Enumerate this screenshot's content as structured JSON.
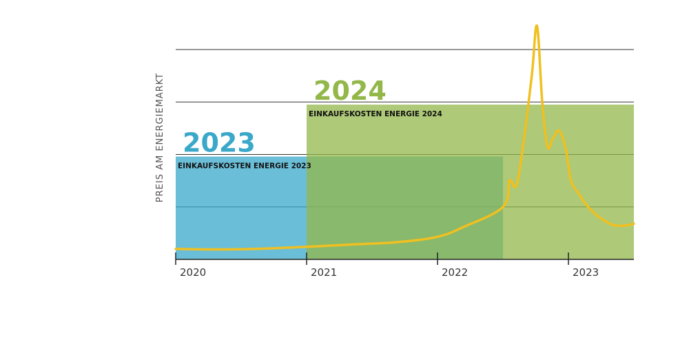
{
  "chart_data": {
    "type": "line",
    "title": "",
    "ylabel": "PREIS AM ENERGIEMARKT",
    "xlabel": "",
    "x_ticks": [
      "2020",
      "2021",
      "2022",
      "2023"
    ],
    "xlim": [
      2020,
      2023.5
    ],
    "ylim": [
      0,
      4.0
    ],
    "grid": "horizontal",
    "gridlines": [
      1,
      2,
      3,
      4
    ],
    "series": [
      {
        "color": "#f0c020",
        "points": [
          [
            2020.0,
            0.2
          ],
          [
            2020.3,
            0.19
          ],
          [
            2020.6,
            0.2
          ],
          [
            2021.0,
            0.24
          ],
          [
            2021.4,
            0.29
          ],
          [
            2021.7,
            0.33
          ],
          [
            2022.0,
            0.43
          ],
          [
            2022.2,
            0.62
          ],
          [
            2022.5,
            1.0
          ],
          [
            2022.55,
            1.5
          ],
          [
            2022.6,
            1.4
          ],
          [
            2022.65,
            2.1
          ],
          [
            2022.72,
            3.5
          ],
          [
            2022.76,
            4.45
          ],
          [
            2022.8,
            3.0
          ],
          [
            2022.84,
            2.15
          ],
          [
            2022.88,
            2.3
          ],
          [
            2022.93,
            2.45
          ],
          [
            2022.98,
            2.1
          ],
          [
            2023.02,
            1.5
          ],
          [
            2023.08,
            1.25
          ],
          [
            2023.15,
            1.0
          ],
          [
            2023.25,
            0.78
          ],
          [
            2023.35,
            0.65
          ],
          [
            2023.45,
            0.65
          ],
          [
            2023.5,
            0.68
          ]
        ]
      }
    ],
    "bands": [
      {
        "name": "2023",
        "label": "EINKAUFSKOSTEN ENERGIE 2023",
        "x_range": [
          2020,
          2022.5
        ],
        "level": 1.96,
        "color": "#3aa8c9",
        "opacity": 0.75
      },
      {
        "name": "2024",
        "label": "EINKAUFSKOSTEN ENERGIE 2024",
        "x_range": [
          2021,
          2023.5
        ],
        "level": 2.95,
        "color": "#93b749",
        "opacity": 0.75
      }
    ],
    "colors": {
      "band_2023": "#3aa8c9",
      "band_2024": "#93b749",
      "line": "#f0c020",
      "axis": "#222222",
      "grid": "#333333"
    }
  }
}
